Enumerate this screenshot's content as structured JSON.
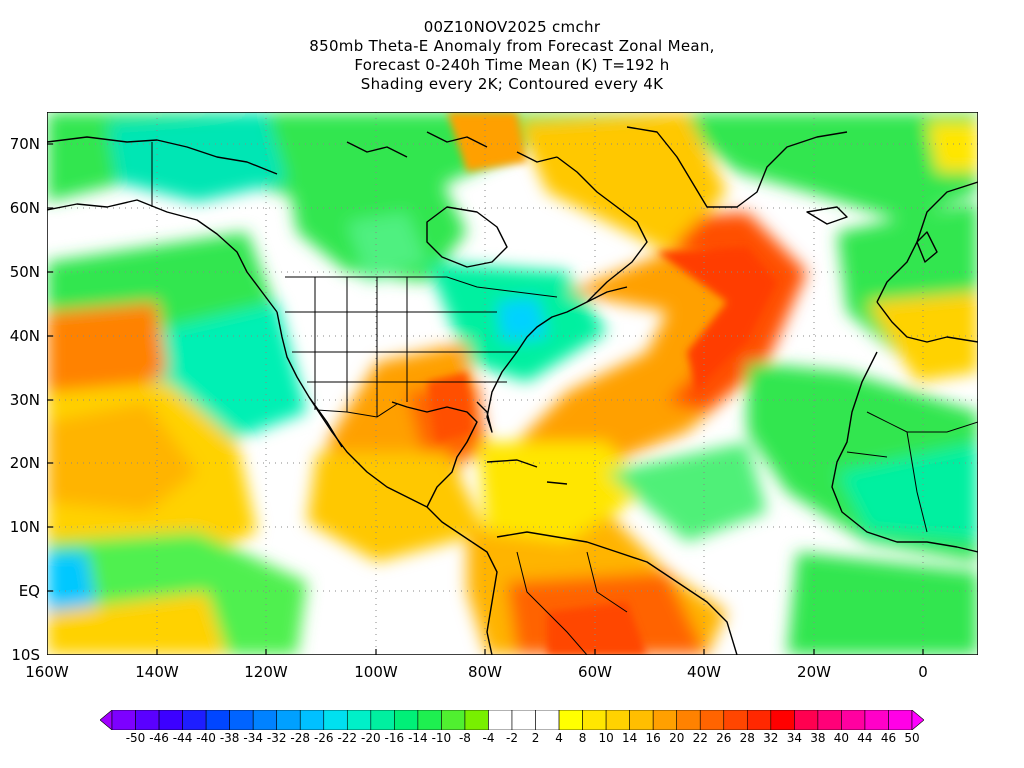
{
  "title": {
    "line1": "00Z10NOV2025 cmchr",
    "line2": "850mb Theta-E Anomaly from Forecast Zonal Mean,",
    "line3": "Forecast 0-240h Time Mean (K) T=192 h",
    "line4": "Shading every 2K; Contoured every 4K"
  },
  "map": {
    "lon_range": [
      -160,
      10
    ],
    "lat_range": [
      -10,
      75
    ],
    "y_labels": [
      "70N",
      "60N",
      "50N",
      "40N",
      "30N",
      "20N",
      "10N",
      "EQ",
      "10S"
    ],
    "x_labels": [
      "160W",
      "140W",
      "120W",
      "100W",
      "80W",
      "60W",
      "40W",
      "20W",
      "0"
    ]
  },
  "colorbar": {
    "labels": [
      "-50",
      "-46",
      "-44",
      "-40",
      "-38",
      "-34",
      "-32",
      "-28",
      "-26",
      "-22",
      "-20",
      "-16",
      "-14",
      "-10",
      "-8",
      "-4",
      "-2",
      "2",
      "4",
      "8",
      "10",
      "14",
      "16",
      "20",
      "22",
      "26",
      "28",
      "32",
      "34",
      "38",
      "40",
      "44",
      "46",
      "50"
    ],
    "colors": [
      "#a000ff",
      "#7d00ff",
      "#5a00ff",
      "#3c00ff",
      "#1e1eff",
      "#0046ff",
      "#0064ff",
      "#0082ff",
      "#00a0ff",
      "#00c0ff",
      "#00e0f0",
      "#00f0c8",
      "#00f0a0",
      "#00f078",
      "#1ef050",
      "#50f030",
      "#78f000",
      "#ffffff",
      "#ffffff",
      "#ffffff",
      "#ffff00",
      "#ffe600",
      "#ffd200",
      "#ffbe00",
      "#ffa000",
      "#ff8200",
      "#ff6400",
      "#ff4600",
      "#ff2800",
      "#ff0000",
      "#ff0050",
      "#ff0078",
      "#ff00a0",
      "#ff00c8",
      "#ff00e6",
      "#ff00ff"
    ]
  }
}
